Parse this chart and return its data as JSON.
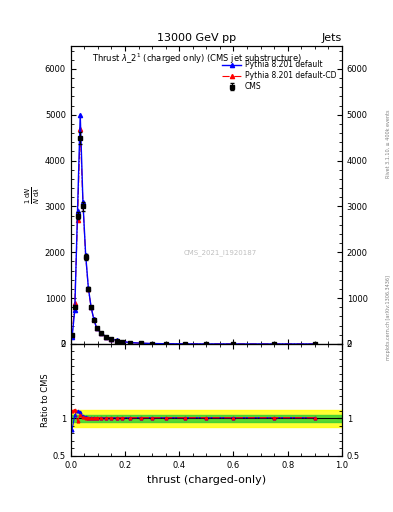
{
  "title_top": "13000 GeV pp",
  "title_right": "Jets",
  "plot_title": "Thrust $\\lambda\\_2^1$ (charged only) (CMS jet substructure)",
  "xlabel": "thrust (charged-only)",
  "ratio_ylabel": "Ratio to CMS",
  "watermark": "CMS_2021_I1920187",
  "right_label": "mcplots.cern.ch [arXiv:1306.3436]",
  "rivet_label": "Rivet 3.1.10, ≥ 400k events",
  "legend_entries": [
    "CMS",
    "Pythia 8.201 default",
    "Pythia 8.201 default-CD"
  ],
  "cms_color": "#000000",
  "pythia_default_color": "#0000ff",
  "pythia_cd_color": "#ff0000",
  "thrust_x": [
    0.005,
    0.015,
    0.025,
    0.035,
    0.045,
    0.055,
    0.065,
    0.075,
    0.085,
    0.095,
    0.11,
    0.13,
    0.15,
    0.17,
    0.19,
    0.22,
    0.26,
    0.3,
    0.35,
    0.42,
    0.5,
    0.6,
    0.75,
    0.9
  ],
  "cms_y": [
    200,
    800,
    2800,
    4500,
    3000,
    1900,
    1200,
    800,
    530,
    350,
    240,
    160,
    110,
    75,
    50,
    30,
    16,
    9,
    4.5,
    2,
    1,
    0.5,
    0.2,
    0.08
  ],
  "pythia_default_y": [
    150,
    750,
    2900,
    5000,
    3100,
    1950,
    1220,
    810,
    540,
    355,
    245,
    162,
    112,
    76,
    51,
    31,
    16.5,
    9.5,
    4.8,
    2.1,
    1.1,
    0.55,
    0.22,
    0.09
  ],
  "pythia_cd_y": [
    180,
    900,
    2700,
    4700,
    3050,
    1920,
    1210,
    805,
    535,
    352,
    242,
    160,
    110,
    75,
    50.5,
    30.5,
    16.2,
    9.2,
    4.6,
    2.05,
    1.05,
    0.52,
    0.21,
    0.085
  ],
  "ratio_default_y": [
    0.85,
    1.05,
    1.1,
    1.08,
    1.03,
    1.02,
    1.01,
    1.01,
    1.01,
    1.01,
    1.01,
    1.01,
    1.01,
    1.01,
    1.01,
    1.01,
    1.01,
    1.01,
    1.01,
    1.01,
    1.01,
    1.01,
    1.01,
    1.01
  ],
  "ratio_cd_y": [
    1.1,
    1.12,
    0.97,
    1.04,
    1.02,
    1.01,
    1.01,
    1.01,
    1.01,
    1.01,
    1.01,
    1.01,
    1.01,
    1.01,
    1.01,
    1.01,
    1.01,
    1.01,
    1.01,
    1.01,
    1.01,
    1.01,
    1.01,
    1.01
  ],
  "green_band_upper": 1.05,
  "green_band_lower": 0.95,
  "yellow_band_upper": 1.12,
  "yellow_band_lower": 0.88,
  "ylim_main": [
    0,
    6500
  ],
  "ylim_ratio": [
    0.5,
    2.0
  ],
  "xlim": [
    0.0,
    1.0
  ],
  "yticks_main": [
    0,
    1000,
    2000,
    3000,
    4000,
    5000,
    6000
  ],
  "bg_color": "#ffffff"
}
